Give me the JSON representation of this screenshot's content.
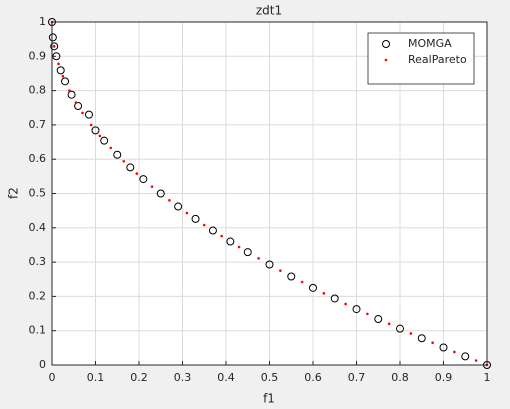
{
  "chart_data": {
    "type": "scatter",
    "title": "zdt1",
    "x_label": "f1",
    "y_label": "f2",
    "xlim": [
      0,
      1
    ],
    "ylim": [
      0,
      1
    ],
    "xticks": [
      0,
      0.1,
      0.2,
      0.3,
      0.4,
      0.5,
      0.6,
      0.7,
      0.8,
      0.9,
      1
    ],
    "yticks": [
      0,
      0.1,
      0.2,
      0.3,
      0.4,
      0.5,
      0.6,
      0.7,
      0.8,
      0.9,
      1
    ],
    "grid": true,
    "legend": "northeast",
    "series": [
      {
        "name": "MOMGA",
        "color": "#000000",
        "marker": "circle",
        "x": [
          0,
          0.002,
          0.005,
          0.01,
          0.02,
          0.03,
          0.045,
          0.06,
          0.085,
          0.1,
          0.12,
          0.15,
          0.18,
          0.21,
          0.25,
          0.29,
          0.33,
          0.37,
          0.41,
          0.45,
          0.5,
          0.55,
          0.6,
          0.65,
          0.7,
          0.75,
          0.8,
          0.85,
          0.9,
          0.95,
          1
        ],
        "values": [
          1,
          0.955,
          0.929,
          0.9,
          0.859,
          0.827,
          0.788,
          0.755,
          0.73,
          0.684,
          0.654,
          0.613,
          0.576,
          0.542,
          0.5,
          0.462,
          0.426,
          0.392,
          0.36,
          0.329,
          0.293,
          0.258,
          0.225,
          0.194,
          0.163,
          0.134,
          0.106,
          0.078,
          0.051,
          0.025,
          0
        ]
      },
      {
        "name": "RealPareto",
        "color": "#ff0000",
        "marker": "dot",
        "x": [
          0,
          0.005,
          0.015,
          0.025,
          0.04,
          0.055,
          0.07,
          0.09,
          0.11,
          0.135,
          0.165,
          0.195,
          0.23,
          0.27,
          0.31,
          0.35,
          0.39,
          0.43,
          0.475,
          0.525,
          0.575,
          0.625,
          0.675,
          0.725,
          0.775,
          0.825,
          0.875,
          0.925,
          0.975,
          1
        ],
        "values": [
          1,
          0.929,
          0.878,
          0.842,
          0.8,
          0.765,
          0.735,
          0.7,
          0.668,
          0.633,
          0.594,
          0.558,
          0.52,
          0.48,
          0.443,
          0.408,
          0.376,
          0.344,
          0.311,
          0.275,
          0.242,
          0.209,
          0.178,
          0.149,
          0.12,
          0.092,
          0.065,
          0.038,
          0.013,
          0
        ]
      }
    ]
  }
}
